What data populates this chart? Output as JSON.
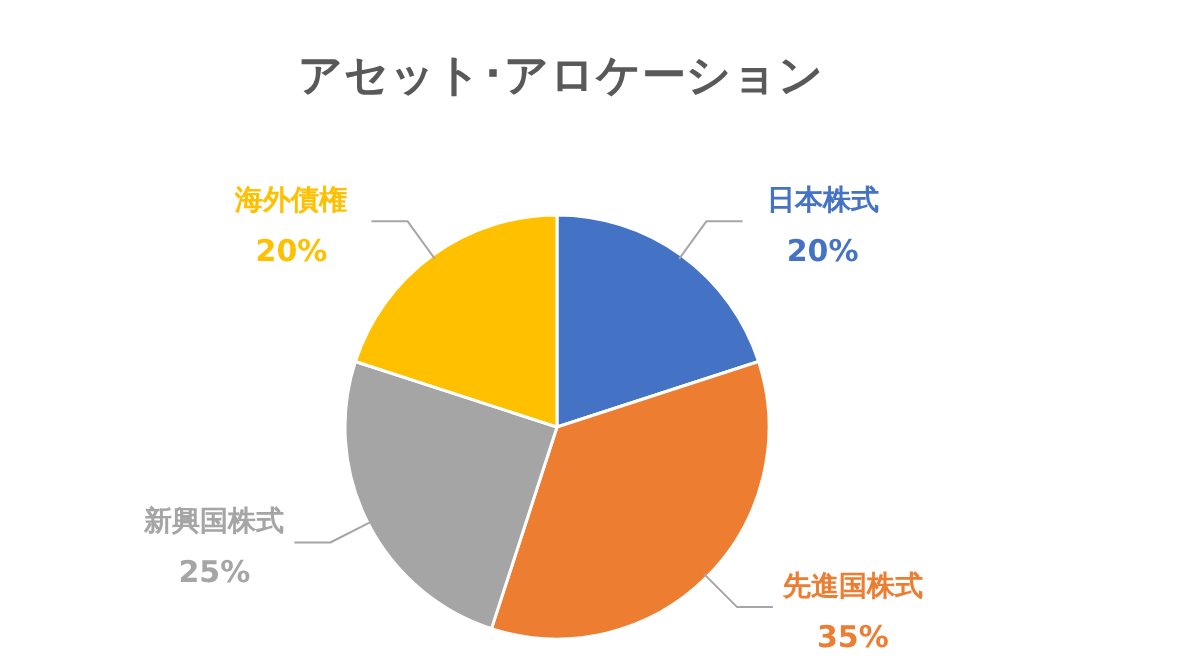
{
  "chart_data": {
    "type": "pie",
    "title": "アセット･アロケーション",
    "categories": [
      "日本株式",
      "先進国株式",
      "新興国株式",
      "海外債権"
    ],
    "values": [
      20,
      35,
      25,
      20
    ],
    "colors": [
      "#4472c4",
      "#ed7d31",
      "#a5a5a5",
      "#ffc000"
    ],
    "value_labels": [
      "20%",
      "35%",
      "25%",
      "20%"
    ]
  }
}
